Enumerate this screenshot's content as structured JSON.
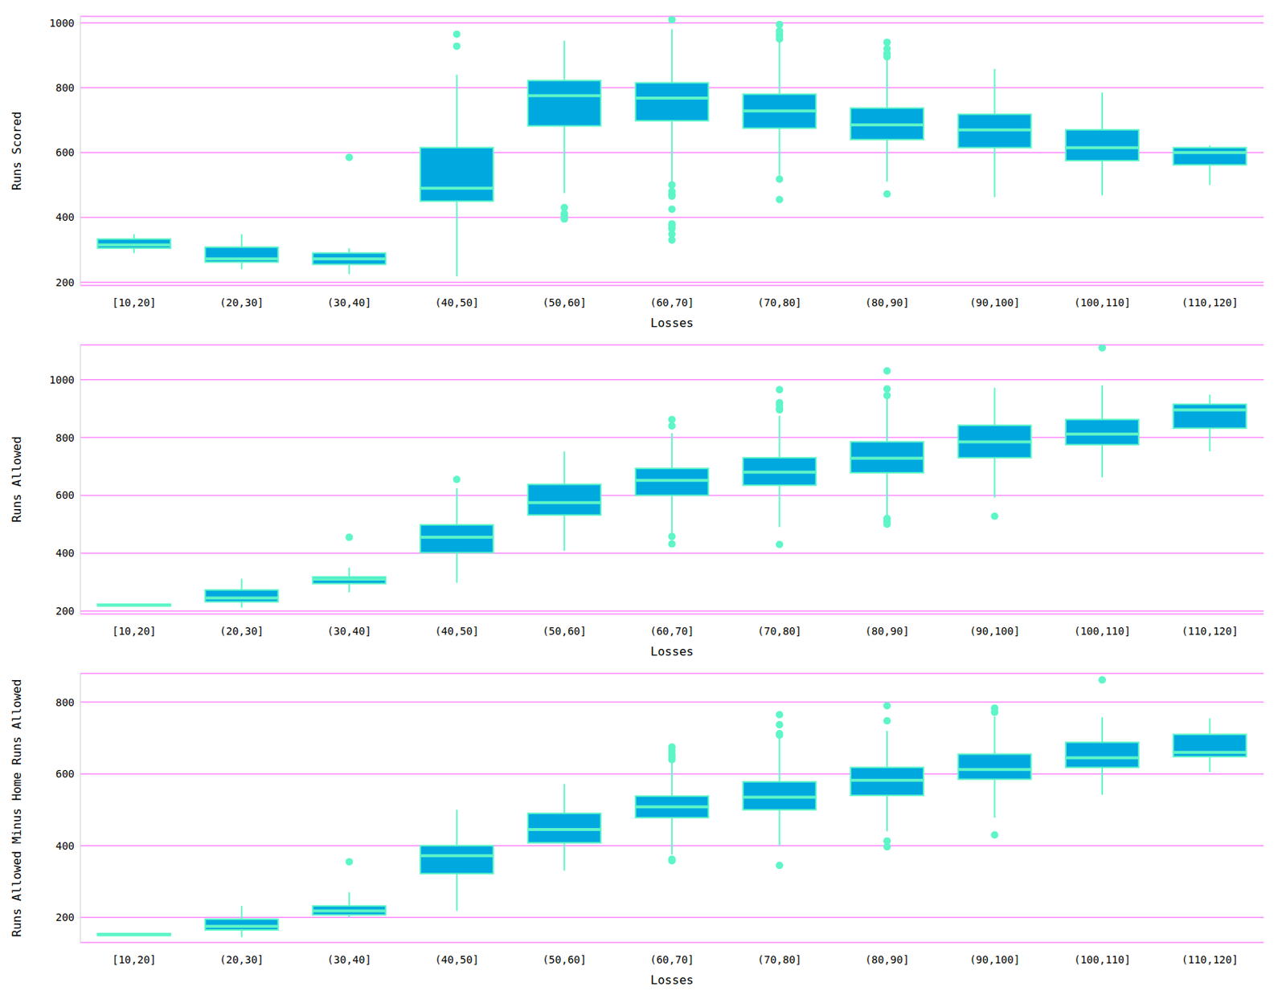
{
  "chart_data": [
    {
      "type": "boxplot",
      "x_label": "Losses",
      "y_label": "Runs Scored",
      "color": "#00a8e0",
      "grid": true,
      "categories": [
        "[10,20]",
        "(20,30]",
        "(30,40]",
        "(40,50]",
        "(50,60]",
        "(60,70]",
        "(70,80]",
        "(80,90]",
        "(90,100]",
        "(100,110]",
        "(110,120]"
      ],
      "ylim": [
        190,
        1020
      ],
      "yticks": [
        200,
        400,
        600,
        800,
        1000
      ],
      "boxes": [
        {
          "q1": 305,
          "median": 315,
          "q3": 333,
          "whisker_low": 290,
          "whisker_high": 348,
          "outliers": []
        },
        {
          "q1": 262,
          "median": 272,
          "q3": 308,
          "whisker_low": 240,
          "whisker_high": 348,
          "outliers": []
        },
        {
          "q1": 255,
          "median": 272,
          "q3": 290,
          "whisker_low": 225,
          "whisker_high": 305,
          "outliers": [
            585
          ]
        },
        {
          "q1": 450,
          "median": 490,
          "q3": 615,
          "whisker_low": 218,
          "whisker_high": 840,
          "outliers": [
            928,
            965
          ]
        },
        {
          "q1": 682,
          "median": 775,
          "q3": 822,
          "whisker_low": 475,
          "whisker_high": 945,
          "outliers": [
            395,
            405,
            412,
            430
          ]
        },
        {
          "q1": 698,
          "median": 768,
          "q3": 815,
          "whisker_low": 505,
          "whisker_high": 980,
          "outliers": [
            1010,
            500,
            480,
            470,
            465,
            425,
            380,
            372,
            365,
            348,
            330
          ]
        },
        {
          "q1": 675,
          "median": 728,
          "q3": 780,
          "whisker_low": 530,
          "whisker_high": 945,
          "outliers": [
            518,
            455,
            950,
            958,
            965,
            975,
            995
          ]
        },
        {
          "q1": 640,
          "median": 685,
          "q3": 737,
          "whisker_low": 510,
          "whisker_high": 885,
          "outliers": [
            472,
            895,
            905,
            920,
            940
          ]
        },
        {
          "q1": 615,
          "median": 670,
          "q3": 718,
          "whisker_low": 462,
          "whisker_high": 858,
          "outliers": []
        },
        {
          "q1": 575,
          "median": 615,
          "q3": 670,
          "whisker_low": 468,
          "whisker_high": 785,
          "outliers": []
        },
        {
          "q1": 562,
          "median": 600,
          "q3": 615,
          "whisker_low": 500,
          "whisker_high": 622,
          "outliers": []
        }
      ]
    },
    {
      "type": "boxplot",
      "x_label": "Losses",
      "y_label": "Runs Allowed",
      "color": "#00a8e0",
      "grid": true,
      "categories": [
        "[10,20]",
        "(20,30]",
        "(30,40]",
        "(40,50]",
        "(50,60]",
        "(60,70]",
        "(70,80]",
        "(80,90]",
        "(90,100]",
        "(100,110]",
        "(110,120]"
      ],
      "ylim": [
        190,
        1120
      ],
      "yticks": [
        200,
        400,
        600,
        800,
        1000
      ],
      "boxes": [
        {
          "q1": 218,
          "median": 220,
          "q3": 224,
          "whisker_low": 218,
          "whisker_high": 224,
          "outliers": []
        },
        {
          "q1": 232,
          "median": 245,
          "q3": 273,
          "whisker_low": 212,
          "whisker_high": 312,
          "outliers": []
        },
        {
          "q1": 295,
          "median": 310,
          "q3": 318,
          "whisker_low": 265,
          "whisker_high": 350,
          "outliers": [
            455
          ]
        },
        {
          "q1": 402,
          "median": 455,
          "q3": 498,
          "whisker_low": 298,
          "whisker_high": 625,
          "outliers": [
            655
          ]
        },
        {
          "q1": 532,
          "median": 575,
          "q3": 638,
          "whisker_low": 408,
          "whisker_high": 752,
          "outliers": []
        },
        {
          "q1": 600,
          "median": 652,
          "q3": 693,
          "whisker_low": 470,
          "whisker_high": 815,
          "outliers": [
            862,
            840,
            458,
            432
          ]
        },
        {
          "q1": 635,
          "median": 680,
          "q3": 730,
          "whisker_low": 490,
          "whisker_high": 875,
          "outliers": [
            965,
            920,
            912,
            900,
            895,
            430
          ]
        },
        {
          "q1": 678,
          "median": 728,
          "q3": 785,
          "whisker_low": 530,
          "whisker_high": 940,
          "outliers": [
            1030,
            968,
            945,
            520,
            510,
            500
          ]
        },
        {
          "q1": 730,
          "median": 785,
          "q3": 842,
          "whisker_low": 592,
          "whisker_high": 972,
          "outliers": [
            528
          ]
        },
        {
          "q1": 775,
          "median": 812,
          "q3": 862,
          "whisker_low": 662,
          "whisker_high": 980,
          "outliers": [
            1110
          ]
        },
        {
          "q1": 832,
          "median": 895,
          "q3": 915,
          "whisker_low": 752,
          "whisker_high": 948,
          "outliers": []
        }
      ]
    },
    {
      "type": "boxplot",
      "x_label": "Losses",
      "y_label": "Runs Allowed Minus Home Runs Allowed",
      "color": "#00a8e0",
      "grid": true,
      "categories": [
        "[10,20]",
        "(20,30]",
        "(30,40]",
        "(40,50]",
        "(50,60]",
        "(60,70]",
        "(70,80]",
        "(80,90]",
        "(90,100]",
        "(100,110]",
        "(110,120]"
      ],
      "ylim": [
        130,
        880
      ],
      "yticks": [
        200,
        400,
        600,
        800
      ],
      "boxes": [
        {
          "q1": 150,
          "median": 152,
          "q3": 155,
          "whisker_low": 150,
          "whisker_high": 155,
          "outliers": []
        },
        {
          "q1": 165,
          "median": 175,
          "q3": 195,
          "whisker_low": 145,
          "whisker_high": 232,
          "outliers": []
        },
        {
          "q1": 207,
          "median": 218,
          "q3": 232,
          "whisker_low": 200,
          "whisker_high": 270,
          "outliers": [
            355
          ]
        },
        {
          "q1": 322,
          "median": 372,
          "q3": 400,
          "whisker_low": 218,
          "whisker_high": 500,
          "outliers": []
        },
        {
          "q1": 408,
          "median": 445,
          "q3": 490,
          "whisker_low": 330,
          "whisker_high": 572,
          "outliers": []
        },
        {
          "q1": 478,
          "median": 508,
          "q3": 538,
          "whisker_low": 375,
          "whisker_high": 635,
          "outliers": [
            675,
            665,
            655,
            648,
            640,
            362,
            358
          ]
        },
        {
          "q1": 500,
          "median": 535,
          "q3": 578,
          "whisker_low": 400,
          "whisker_high": 700,
          "outliers": [
            765,
            737,
            712,
            708,
            345
          ]
        },
        {
          "q1": 540,
          "median": 582,
          "q3": 618,
          "whisker_low": 440,
          "whisker_high": 720,
          "outliers": [
            790,
            748,
            413,
            397
          ]
        },
        {
          "q1": 585,
          "median": 612,
          "q3": 655,
          "whisker_low": 478,
          "whisker_high": 760,
          "outliers": [
            783,
            772,
            430
          ]
        },
        {
          "q1": 618,
          "median": 645,
          "q3": 688,
          "whisker_low": 542,
          "whisker_high": 758,
          "outliers": [
            862
          ]
        },
        {
          "q1": 648,
          "median": 660,
          "q3": 710,
          "whisker_low": 605,
          "whisker_high": 755,
          "outliers": []
        }
      ]
    }
  ]
}
